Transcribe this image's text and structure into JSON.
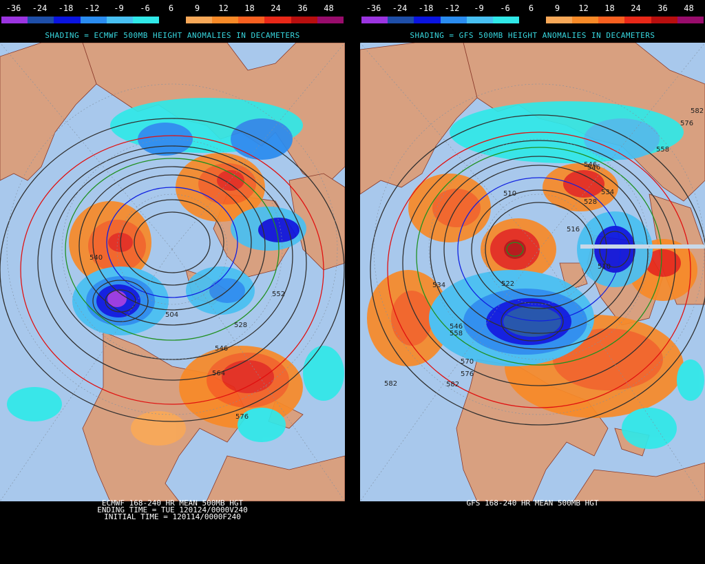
{
  "scale": {
    "labels": [
      "-36",
      "-24",
      "-18",
      "-12",
      "-9",
      "-6",
      "6",
      "9",
      "12",
      "18",
      "24",
      "36",
      "48"
    ],
    "colors": [
      "#9b34e0",
      "#1e4ea8",
      "#0a14e0",
      "#2a8cf0",
      "#48c0f2",
      "#30e8e8",
      "#000000",
      "#f8a858",
      "#f88a28",
      "#f86020",
      "#e82818",
      "#b80e0e",
      "#980c6c"
    ]
  },
  "left": {
    "shading_title": "SHADING = ECMWF 500MB HEIGHT ANOMALIES IN DECAMETERS",
    "caption_lines": [
      "ECMWF 168-240 HR MEAN 500MB HGT",
      "ENDING TIME = TUE 120124/0000V240",
      "INITIAL TIME = 120114/0000F240"
    ],
    "contour_labels": [
      "540",
      "504",
      "552",
      "528",
      "546",
      "564",
      "576"
    ]
  },
  "right": {
    "shading_title": "SHADING = GFS 500MB HEIGHT ANOMALIES IN DECAMETERS",
    "caption_lines": [
      "GFS 168-240 HR MEAN 500MB HGT"
    ],
    "contour_labels": [
      "546",
      "534",
      "510",
      "528",
      "516",
      "510",
      "522",
      "534",
      "546",
      "558",
      "570",
      "576",
      "582",
      "582",
      "546",
      "558",
      "576",
      "582"
    ]
  },
  "colors": {
    "ocean": "#a8c8ec",
    "land": "#d8a080",
    "grid": "#8090a0",
    "contour": "#303030",
    "contour_blue": "#1020e0",
    "contour_green": "#209020",
    "contour_red": "#e01010",
    "title_cyan": "#38d8e0"
  }
}
